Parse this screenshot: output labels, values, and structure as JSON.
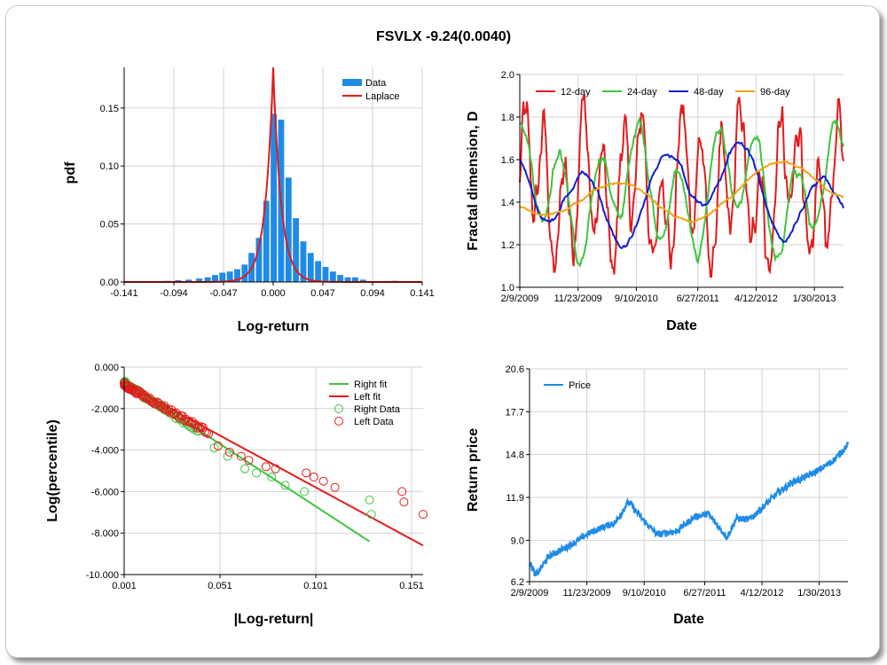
{
  "title": "FSVLX -9.24(0.0040)",
  "chart_data": [
    {
      "id": "hist",
      "type": "bar",
      "xlabel": "Log-return",
      "ylabel": "pdf",
      "xlim": [
        -0.141,
        0.141
      ],
      "ylim": [
        0,
        0.185
      ],
      "x_ticks": [
        "-0.141",
        "-0.094",
        "-0.047",
        "0.000",
        "0.047",
        "0.094",
        "0.141"
      ],
      "y_ticks": [
        "0.00",
        "0.05",
        "0.10",
        "0.15"
      ],
      "legend": [
        "Data",
        "Laplace"
      ],
      "bin_width": 0.00705,
      "bins_x": [
        -0.1,
        -0.09,
        -0.08,
        -0.07,
        -0.062,
        -0.055,
        -0.048,
        -0.041,
        -0.034,
        -0.027,
        -0.0205,
        -0.0135,
        -0.0065,
        0.0005,
        0.0075,
        0.0145,
        0.0215,
        0.0285,
        0.0355,
        0.0425,
        0.0495,
        0.0565,
        0.0635,
        0.0705,
        0.0775,
        0.085,
        0.115
      ],
      "bins_y": [
        0.001,
        0.0015,
        0.002,
        0.003,
        0.004,
        0.006,
        0.008,
        0.009,
        0.011,
        0.015,
        0.025,
        0.038,
        0.07,
        0.145,
        0.14,
        0.09,
        0.055,
        0.035,
        0.025,
        0.018,
        0.013,
        0.009,
        0.006,
        0.004,
        0.004,
        0.002,
        0.001
      ],
      "laplace": {
        "mu": 0.0,
        "b": 0.0075
      },
      "colors": {
        "data": "#1f8be6",
        "fit": "#e31b1b"
      }
    },
    {
      "id": "fractal",
      "type": "line",
      "xlabel": "Date",
      "ylabel": "Fractal dimension, D",
      "ylim": [
        1.0,
        2.0
      ],
      "x_ticks": [
        "2/9/2009",
        "11/23/2009",
        "9/10/2010",
        "6/27/2011",
        "4/12/2012",
        "1/30/2013"
      ],
      "y_ticks": [
        "1.0",
        "1.2",
        "1.4",
        "1.6",
        "1.8",
        "2.0"
      ],
      "series": [
        {
          "name": "12-day",
          "color": "#e31b1b"
        },
        {
          "name": "24-day",
          "color": "#3ec43e"
        },
        {
          "name": "48-day",
          "color": "#0d1fd1"
        },
        {
          "name": "96-day",
          "color": "#f2a21a"
        }
      ]
    },
    {
      "id": "tails",
      "type": "scatter",
      "xlabel": "|Log-return|",
      "ylabel": "Log(percentile)",
      "xlim": [
        0.001,
        0.157
      ],
      "ylim": [
        -10.0,
        0.0
      ],
      "x_ticks": [
        "0.001",
        "0.051",
        "0.101",
        "0.151"
      ],
      "y_ticks": [
        "0.000",
        "-2.000",
        "-4.000",
        "-6.000",
        "-8.000",
        "-10.000"
      ],
      "legend": [
        "Right fit",
        "Left fit",
        "Right Data",
        "Left Data"
      ],
      "right_fit": {
        "x": [
          0.001,
          0.129
        ],
        "y": [
          -0.7,
          -8.4
        ]
      },
      "left_fit": {
        "x": [
          0.001,
          0.157
        ],
        "y": [
          -0.8,
          -8.6
        ]
      },
      "colors": {
        "right": "#3ec43e",
        "left": "#e31b1b"
      }
    },
    {
      "id": "price",
      "type": "line",
      "xlabel": "Date",
      "ylabel": "Return price",
      "ylim": [
        6.2,
        20.6
      ],
      "x_ticks": [
        "2/9/2009",
        "11/23/2009",
        "9/10/2010",
        "6/27/2011",
        "4/12/2012",
        "1/30/2013"
      ],
      "y_ticks": [
        "6.2",
        "9.0",
        "11.9",
        "14.8",
        "17.7",
        "20.6"
      ],
      "series": [
        {
          "name": "Price",
          "color": "#1f8be6"
        }
      ],
      "anchors": {
        "t": [
          0,
          0.02,
          0.06,
          0.13,
          0.18,
          0.22,
          0.27,
          0.31,
          0.36,
          0.4,
          0.46,
          0.52,
          0.56,
          0.62,
          0.65,
          0.69,
          0.74,
          0.78,
          0.83,
          0.86,
          0.92,
          0.96,
          1.0
        ],
        "v": [
          7.5,
          6.6,
          7.9,
          8.7,
          9.4,
          9.8,
          10.2,
          11.6,
          10.3,
          9.4,
          9.6,
          10.6,
          10.8,
          9.2,
          10.5,
          10.4,
          11.4,
          12.2,
          13.0,
          13.2,
          13.9,
          14.5,
          15.5
        ]
      }
    }
  ]
}
